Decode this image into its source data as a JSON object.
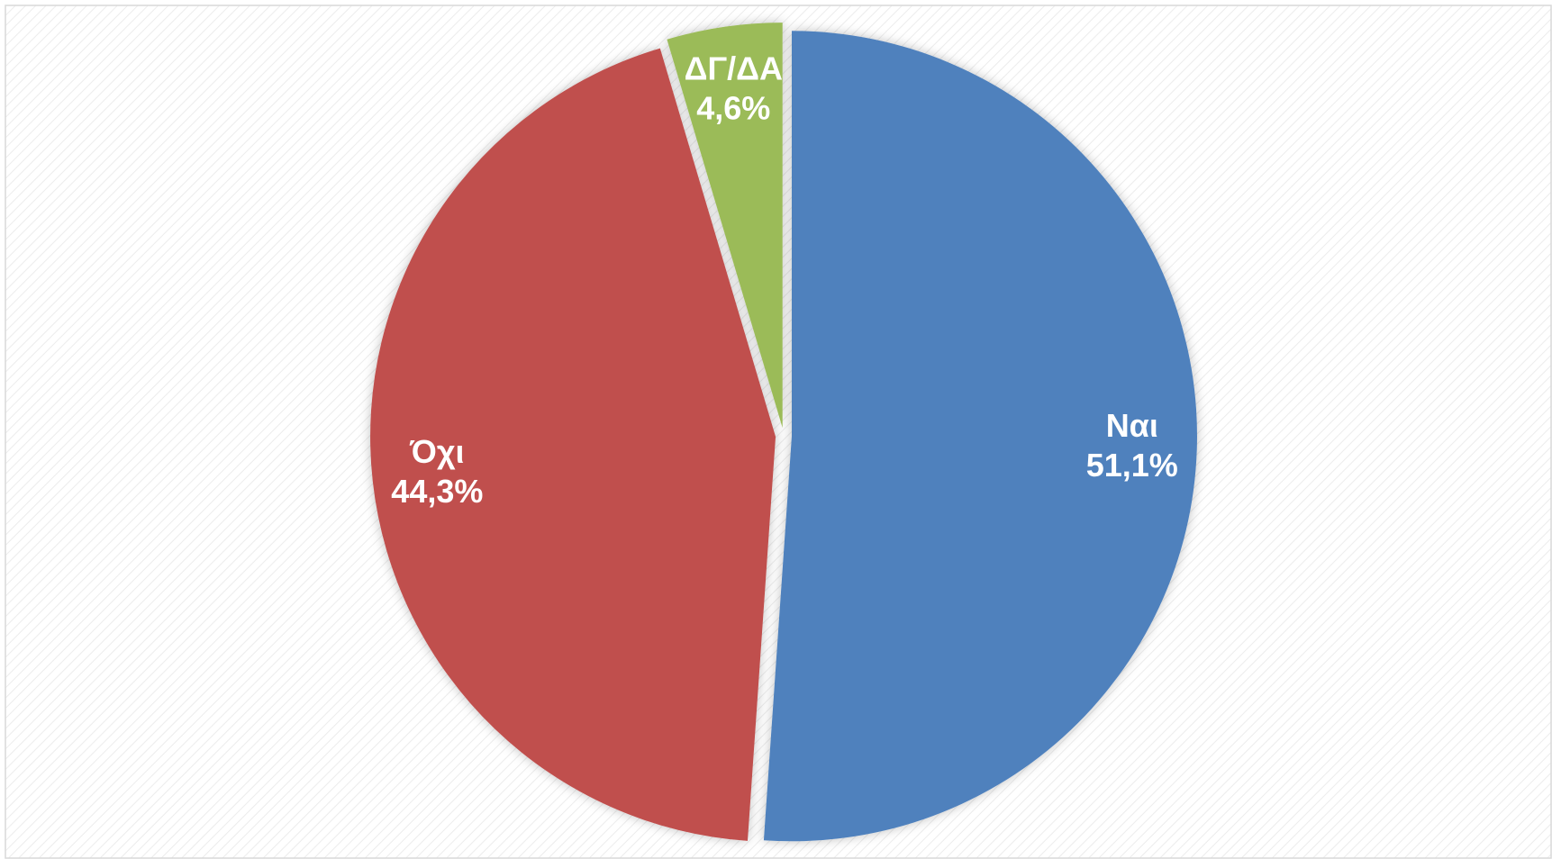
{
  "chart_data": {
    "type": "pie",
    "categories": [
      "Ναι",
      "Όχι",
      "ΔΓ/ΔΑ"
    ],
    "values": [
      51.1,
      44.3,
      4.6
    ],
    "value_labels": [
      "51,1%",
      "44,3%",
      "4,6%"
    ],
    "colors": [
      "#4f81bd",
      "#c0504d",
      "#9bbb59"
    ]
  }
}
